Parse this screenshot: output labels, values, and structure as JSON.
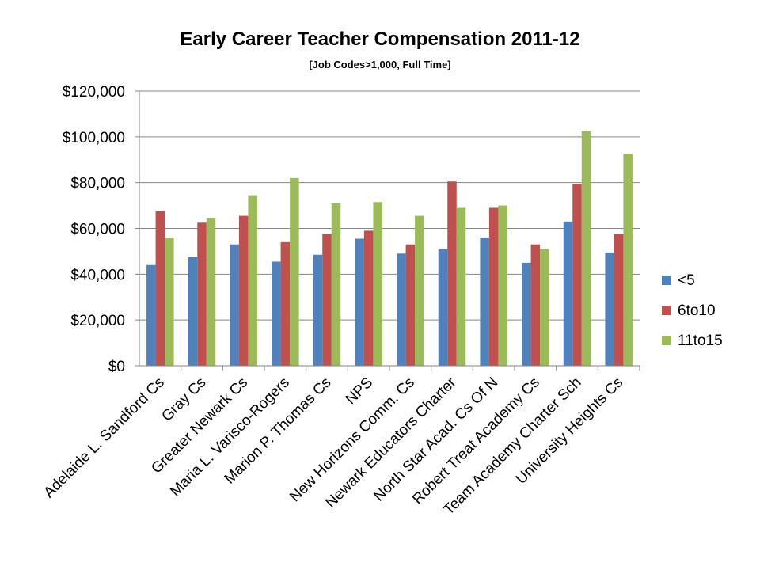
{
  "chart_data": {
    "type": "bar",
    "title": "Early Career Teacher Compensation 2011-12",
    "subtitle": "[Job Codes>1,000, Full Time]",
    "xlabel": "",
    "ylabel": "",
    "ylim": [
      0,
      120000
    ],
    "yticks": [
      "$0",
      "$20,000",
      "$40,000",
      "$60,000",
      "$80,000",
      "$100,000",
      "$120,000"
    ],
    "ytick_values": [
      0,
      20000,
      40000,
      60000,
      80000,
      100000,
      120000
    ],
    "grid": true,
    "legend_position": "right",
    "categories": [
      "Adelaide L. Sandford Cs",
      "Gray Cs",
      "Greater Newark Cs",
      "Maria L. Varisco-Rogers",
      "Marion P. Thomas Cs",
      "NPS",
      "New Horizons Comm. Cs",
      "Newark Educators Charter",
      "North Star Acad. Cs Of N",
      "Robert Treat Academy Cs",
      "Team Academy Charter Sch",
      "University Heights Cs"
    ],
    "series": [
      {
        "name": "<5",
        "color": "#4f81bd",
        "values": [
          44000,
          47500,
          53000,
          45500,
          48500,
          55500,
          49000,
          51000,
          56000,
          45000,
          63000,
          49500
        ]
      },
      {
        "name": "6to10",
        "color": "#c0504d",
        "values": [
          67500,
          62500,
          65500,
          54000,
          57500,
          59000,
          53000,
          80500,
          69000,
          53000,
          79500,
          57500
        ]
      },
      {
        "name": "11to15",
        "color": "#9bbb59",
        "values": [
          56000,
          64500,
          74500,
          82000,
          71000,
          71500,
          65500,
          69000,
          70000,
          51000,
          102500,
          92500
        ]
      }
    ]
  }
}
